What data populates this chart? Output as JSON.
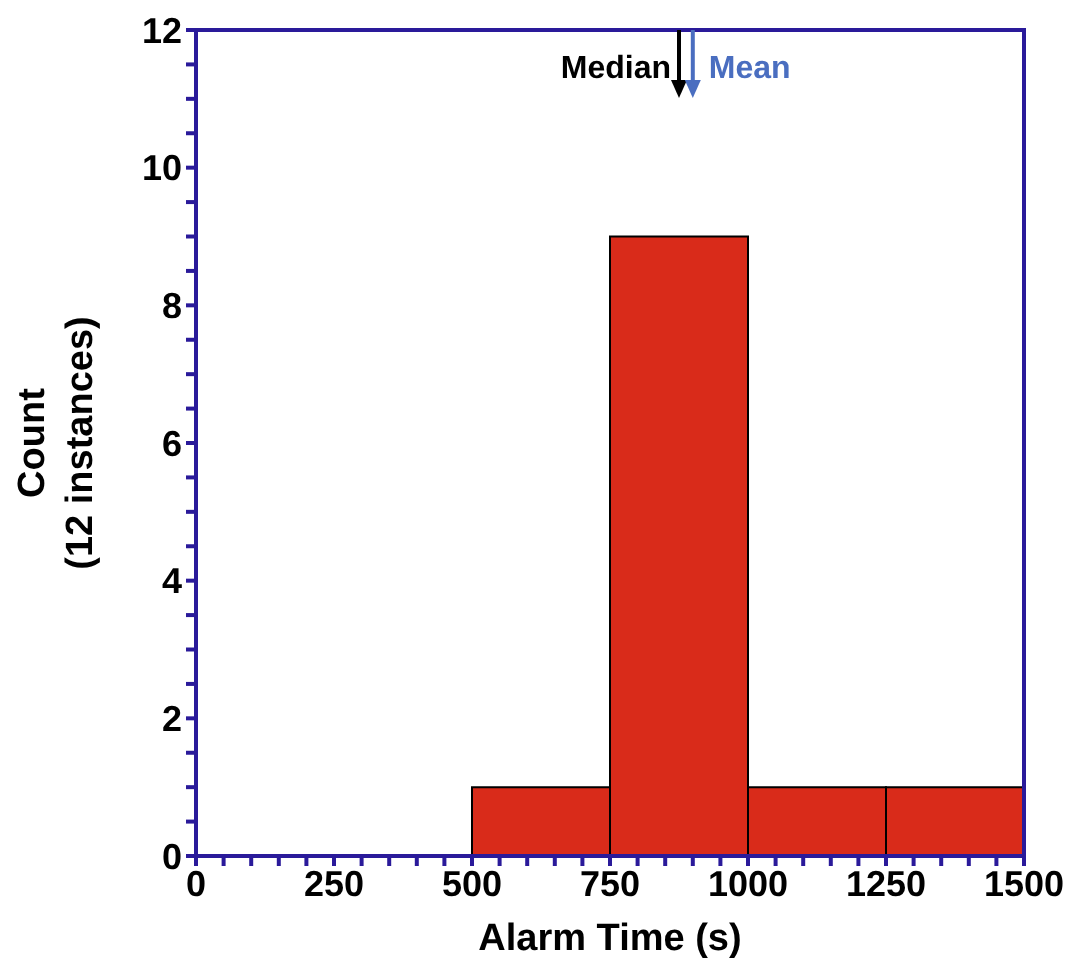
{
  "chart_data": {
    "type": "histogram",
    "xlabel": "Alarm Time (s)",
    "ylabel": "Count (12 instances)",
    "bins": [
      0,
      250,
      500,
      750,
      1000,
      1250,
      1500
    ],
    "values": [
      0,
      0,
      1,
      9,
      1,
      1
    ],
    "color": "#d92b1a",
    "xlim": [
      0,
      1500
    ],
    "xticks": [
      0,
      {
        "value": 50,
        "label": null
      },
      {
        "value": 100,
        "label": null
      },
      {
        "value": 150,
        "label": null
      },
      {
        "value": 200,
        "label": null
      },
      250,
      {
        "value": 300,
        "label": null
      },
      {
        "value": 350,
        "label": null
      },
      {
        "value": 400,
        "label": null
      },
      {
        "value": 450,
        "label": null
      },
      500,
      {
        "value": 550,
        "label": null
      },
      {
        "value": 600,
        "label": null
      },
      {
        "value": 650,
        "label": null
      },
      {
        "value": 700,
        "label": null
      },
      750,
      {
        "value": 800,
        "label": null
      },
      {
        "value": 850,
        "label": null
      },
      {
        "value": 900,
        "label": null
      },
      {
        "value": 950,
        "label": null
      },
      1000,
      {
        "value": 1050,
        "label": null
      },
      {
        "value": 1100,
        "label": null
      },
      {
        "value": 1150,
        "label": null
      },
      {
        "value": 1200,
        "label": null
      },
      1250,
      {
        "value": 1300,
        "label": null
      },
      {
        "value": 1350,
        "label": null
      },
      {
        "value": 1400,
        "label": null
      },
      {
        "value": 1450,
        "label": null
      },
      1500
    ],
    "ylim": [
      0,
      12
    ],
    "yticks": [
      0,
      {
        "value": 0.5,
        "label": null
      },
      {
        "value": 1,
        "label": null
      },
      {
        "value": 1.5,
        "label": null
      },
      2,
      {
        "value": 2.5,
        "label": null
      },
      {
        "value": 3,
        "label": null
      },
      {
        "value": 3.5,
        "label": null
      },
      4,
      {
        "value": 4.5,
        "label": null
      },
      {
        "value": 5,
        "label": null
      },
      {
        "value": 5.5,
        "label": null
      },
      6,
      {
        "value": 6.5,
        "label": null
      },
      {
        "value": 7,
        "label": null
      },
      {
        "value": 7.5,
        "label": null
      },
      8,
      {
        "value": 8.5,
        "label": null
      },
      {
        "value": 9,
        "label": null
      },
      {
        "value": 9.5,
        "label": null
      },
      10,
      {
        "value": 10.5,
        "label": null
      },
      {
        "value": 11,
        "label": null
      },
      {
        "value": 11.5,
        "label": null
      },
      12
    ],
    "ref_lines": [
      {
        "axis": "x",
        "value": 875,
        "label": "Median",
        "color": "#000000"
      },
      {
        "axis": "x",
        "value": 900,
        "label": "Mean",
        "color": "#4a6ec0"
      }
    ]
  }
}
